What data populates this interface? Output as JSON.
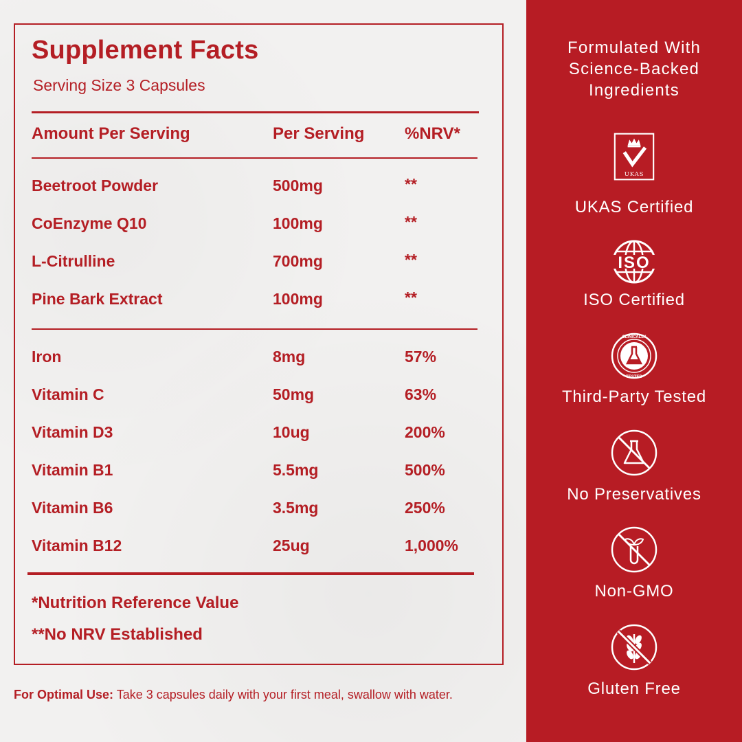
{
  "facts": {
    "title": "Supplement Facts",
    "serving": "Serving Size 3 Capsules",
    "headers": [
      "Amount Per Serving",
      "Per Serving",
      "%NRV*"
    ],
    "group1": [
      {
        "name": "Beetroot Powder",
        "amount": "500mg",
        "nrv": "**"
      },
      {
        "name": "CoEnzyme Q10",
        "amount": "100mg",
        "nrv": "**"
      },
      {
        "name": "L-Citrulline",
        "amount": "700mg",
        "nrv": "**"
      },
      {
        "name": "Pine Bark Extract",
        "amount": "100mg",
        "nrv": "**"
      }
    ],
    "group2": [
      {
        "name": "Iron",
        "amount": "8mg",
        "nrv": "57%"
      },
      {
        "name": "Vitamin C",
        "amount": "50mg",
        "nrv": "63%"
      },
      {
        "name": "Vitamin D3",
        "amount": "10ug",
        "nrv": "200%"
      },
      {
        "name": "Vitamin B1",
        "amount": "5.5mg",
        "nrv": "500%"
      },
      {
        "name": "Vitamin B6",
        "amount": "3.5mg",
        "nrv": "250%"
      },
      {
        "name": "Vitamin B12",
        "amount": "25ug",
        "nrv": "1,000%"
      }
    ],
    "footnote1": "*Nutrition Reference Value",
    "footnote2": "**No NRV Established"
  },
  "usage": {
    "label": "For Optimal Use:",
    "text": "Take 3 capsules daily with your first meal, swallow with water."
  },
  "panel": {
    "title_lines": [
      "Formulated With",
      "Science-Backed",
      "Ingredients"
    ],
    "badges": [
      {
        "icon": "ukas-crown-check-icon",
        "label": "UKAS Certified",
        "icon_text": "UKAS"
      },
      {
        "icon": "iso-globe-icon",
        "label": "ISO Certified",
        "icon_text": "ISO"
      },
      {
        "icon": "clinically-tested-flask-icon",
        "label": "Third-Party Tested",
        "icon_text": "CLINICALLY TESTED"
      },
      {
        "icon": "no-preservatives-flask-icon",
        "label": "No Preservatives"
      },
      {
        "icon": "non-gmo-icon",
        "label": "Non-GMO"
      },
      {
        "icon": "gluten-free-wheat-icon",
        "label": "Gluten Free"
      }
    ],
    "colors": {
      "accent": "#b71c24",
      "text": "#ffffff"
    }
  }
}
